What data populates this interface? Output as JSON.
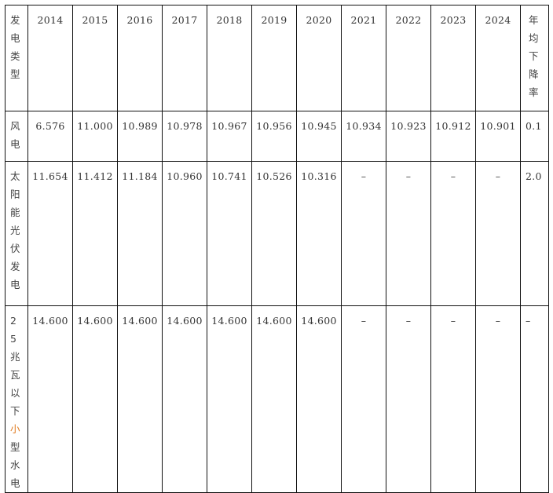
{
  "header": {
    "type_label": "发电类型",
    "years": [
      "2014",
      "2015",
      "2016",
      "2017",
      "2018",
      "2019",
      "2020",
      "2021",
      "2022",
      "2023",
      "2024"
    ],
    "rate_label": "年均下降率"
  },
  "rows": [
    {
      "label": "风电",
      "values": [
        "6.576",
        "11.000",
        "10.989",
        "10.978",
        "10.967",
        "10.956",
        "10.945",
        "10.934",
        "10.923",
        "10.912",
        "10.901"
      ],
      "rate": "0.1"
    },
    {
      "label": "太阳能光伏发电",
      "values": [
        "11.654",
        "11.412",
        "11.184",
        "10.960",
        "10.741",
        "10.526",
        "10.316",
        "–",
        "–",
        "–",
        "–"
      ],
      "rate": "2.0"
    },
    {
      "label_parts": [
        "25兆瓦以下",
        "小",
        "型水电"
      ],
      "values": [
        "14.600",
        "14.600",
        "14.600",
        "14.600",
        "14.600",
        "14.600",
        "14.600",
        "–",
        "–",
        "–",
        "–"
      ],
      "rate": "–"
    }
  ],
  "colors": {
    "highlight": "#e07b20"
  }
}
